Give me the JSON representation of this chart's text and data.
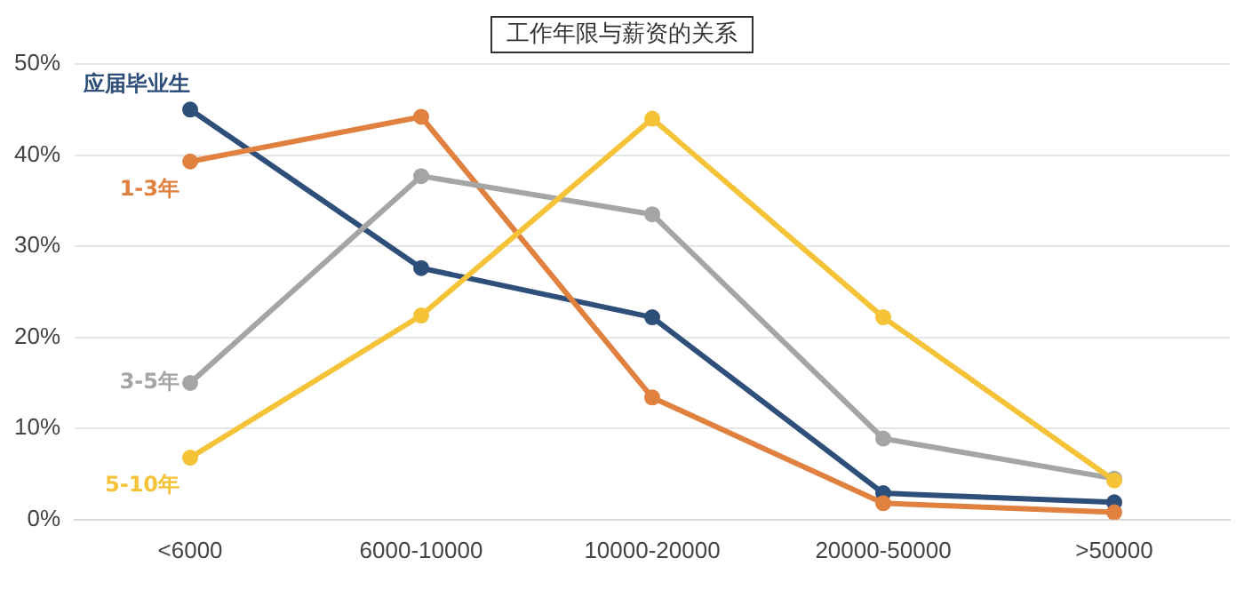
{
  "chart_data": {
    "type": "line",
    "title": "工作年限与薪资的关系",
    "categories": [
      "<6000",
      "6000-10000",
      "10000-20000",
      "20000-50000",
      ">50000"
    ],
    "series": [
      {
        "name": "应届毕业生",
        "color": "#2e4f7a",
        "values": [
          45,
          27.6,
          22.2,
          2.9,
          1.9
        ]
      },
      {
        "name": "1-3年",
        "color": "#e0813f",
        "values": [
          39.3,
          44.2,
          13.4,
          1.8,
          0.8
        ]
      },
      {
        "name": "3-5年",
        "color": "#a5a5a5",
        "values": [
          15,
          37.7,
          33.5,
          8.9,
          4.5
        ]
      },
      {
        "name": "5-10年",
        "color": "#f5c338",
        "values": [
          6.8,
          22.4,
          44,
          22.2,
          4.3
        ]
      }
    ],
    "ylim": [
      0,
      50
    ],
    "yticks": [
      {
        "value": 0,
        "label": "0%"
      },
      {
        "value": 10,
        "label": "10%"
      },
      {
        "value": 20,
        "label": "20%"
      },
      {
        "value": 30,
        "label": "30%"
      },
      {
        "value": 40,
        "label": "40%"
      },
      {
        "value": 50,
        "label": "50%"
      }
    ],
    "grid": "y",
    "legend": false,
    "marker": "circle",
    "line_style": "solid"
  }
}
